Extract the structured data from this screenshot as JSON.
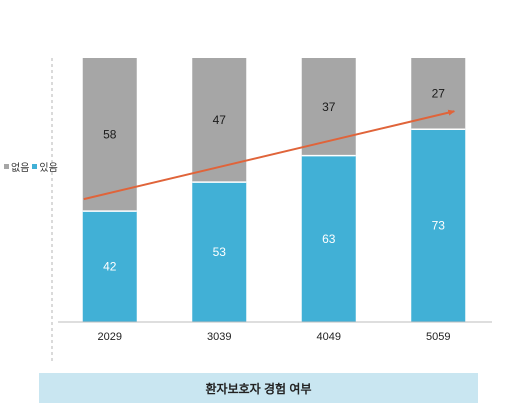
{
  "chart_data": {
    "type": "bar",
    "stacked": true,
    "categories": [
      "2029",
      "3039",
      "4049",
      "5059"
    ],
    "series": [
      {
        "name": "있음",
        "values": [
          42,
          53,
          63,
          73
        ],
        "color": "#41b0d6"
      },
      {
        "name": "없음",
        "values": [
          58,
          47,
          37,
          27
        ],
        "color": "#a6a6a6"
      }
    ],
    "ylim": [
      0,
      100
    ],
    "trend_line": {
      "from": 42,
      "to": 73,
      "color": "#e0643a",
      "arrow": true
    },
    "legend_position": "left",
    "grid": false,
    "title": "",
    "xlabel": "",
    "ylabel": ""
  },
  "caption": "환자보호자 경험 여부"
}
